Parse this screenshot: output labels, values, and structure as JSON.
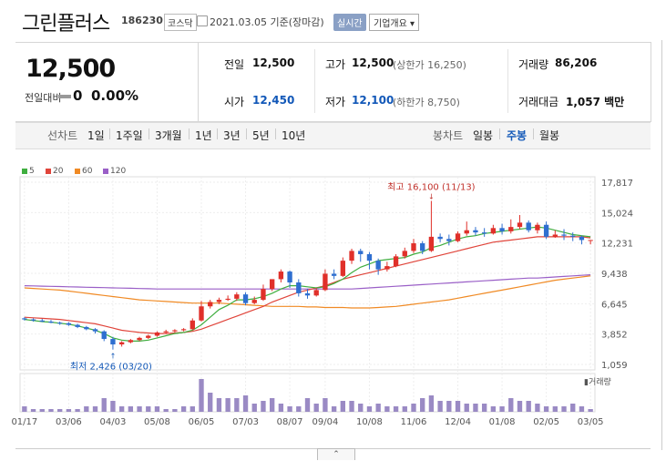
{
  "header": {
    "title": "그린플러스",
    "code": "186230",
    "market": "코스닥",
    "date": "2021.03.05  기준(장마감)",
    "realtime_label": "실시간",
    "corp_overview_label": "기업개요 ▾"
  },
  "price": {
    "current": "12,500",
    "change_label": "전일대비",
    "change_value": "0",
    "change_pct": "0.00%"
  },
  "stats": {
    "prev_close_label": "전일",
    "prev_close": "12,500",
    "high_label": "고가",
    "high": "12,500",
    "upper_limit": "(상한가 16,250)",
    "volume_label": "거래량",
    "volume": "86,206",
    "open_label": "시가",
    "open": "12,450",
    "low_label": "저가",
    "low": "12,100",
    "lower_limit": "(하한가 8,750)",
    "value_label": "거래대금",
    "value": "1,057 백만"
  },
  "tabs": {
    "line_chart": "선차트",
    "periods": [
      "1일",
      "1주일",
      "3개월",
      "1년",
      "3년",
      "5년",
      "10년"
    ],
    "candle_chart": "봉차트",
    "candle_periods": [
      "일봉",
      "주봉",
      "월봉"
    ]
  },
  "chart_data": {
    "type": "candlestick",
    "legend": [
      "5",
      "20",
      "60",
      "120"
    ],
    "colors": {
      "ma5": "#3fae3f",
      "ma20": "#e0443a",
      "ma60": "#f08a24",
      "ma120": "#9a5fc7",
      "up": "#e0302a",
      "down": "#2f6fd0",
      "volume": "#9a8ac4"
    },
    "y_ticks": [
      "17,817",
      "15,024",
      "12,231",
      "9,438",
      "6,645",
      "3,852",
      "1,059"
    ],
    "ylim": [
      1059,
      17817
    ],
    "x_ticks": [
      "01/17",
      "03/06",
      "04/03",
      "05/08",
      "06/05",
      "07/03",
      "08/07",
      "09/04",
      "10/08",
      "11/06",
      "12/04",
      "01/08",
      "02/05",
      "03/05"
    ],
    "annotations": {
      "high": "최고 16,100 (11/13)",
      "low": "최저 2,426 (03/20)"
    },
    "volume_label": "거래량",
    "candles": [
      [
        5300,
        5200,
        5400,
        5100
      ],
      [
        5200,
        5100,
        5300,
        5000
      ],
      [
        5100,
        5000,
        5250,
        4950
      ],
      [
        5000,
        4900,
        5150,
        4850
      ],
      [
        4900,
        4850,
        5000,
        4700
      ],
      [
        4850,
        4700,
        4950,
        4600
      ],
      [
        4700,
        4500,
        4800,
        4400
      ],
      [
        4500,
        4300,
        4600,
        4200
      ],
      [
        4300,
        4100,
        4400,
        3900
      ],
      [
        4100,
        3400,
        4200,
        3200
      ],
      [
        3400,
        2900,
        3600,
        2426
      ],
      [
        2900,
        3100,
        3200,
        2700
      ],
      [
        3100,
        3300,
        3400,
        3000
      ],
      [
        3300,
        3500,
        3600,
        3200
      ],
      [
        3500,
        3700,
        3800,
        3400
      ],
      [
        3700,
        4000,
        4100,
        3600
      ],
      [
        4000,
        4100,
        4250,
        3900
      ],
      [
        4100,
        4200,
        4300,
        4000
      ],
      [
        4200,
        4300,
        4400,
        4100
      ],
      [
        4300,
        5100,
        5300,
        4200
      ],
      [
        5100,
        6400,
        6900,
        5000
      ],
      [
        6400,
        6800,
        7000,
        6200
      ],
      [
        6800,
        7000,
        7200,
        6600
      ],
      [
        7000,
        7100,
        7400,
        6900
      ],
      [
        7100,
        7500,
        7700,
        6900
      ],
      [
        7500,
        6700,
        7700,
        6500
      ],
      [
        6700,
        7000,
        7300,
        6600
      ],
      [
        7000,
        8000,
        8400,
        6900
      ],
      [
        8000,
        8900,
        8900,
        7800
      ],
      [
        8900,
        9600,
        9800,
        8600
      ],
      [
        9600,
        8600,
        9700,
        8100
      ],
      [
        8600,
        7600,
        8900,
        7300
      ],
      [
        7600,
        7400,
        8000,
        7100
      ],
      [
        7400,
        7900,
        8100,
        7300
      ],
      [
        7900,
        9400,
        9800,
        7800
      ],
      [
        9400,
        9200,
        9800,
        8900
      ],
      [
        9200,
        10600,
        10900,
        9100
      ],
      [
        10600,
        11500,
        11700,
        10300
      ],
      [
        11500,
        11200,
        11700,
        10500
      ],
      [
        11200,
        10600,
        11400,
        9800
      ],
      [
        10600,
        9800,
        10800,
        9300
      ],
      [
        9800,
        10100,
        10500,
        9600
      ],
      [
        10100,
        11000,
        11200,
        10000
      ],
      [
        11000,
        11500,
        11800,
        10800
      ],
      [
        11500,
        12200,
        12600,
        11300
      ],
      [
        12200,
        11500,
        12400,
        11200
      ],
      [
        11500,
        12800,
        16100,
        11400
      ],
      [
        12800,
        12600,
        13100,
        12300
      ],
      [
        12600,
        12400,
        13000,
        12000
      ],
      [
        12400,
        13100,
        13300,
        12300
      ],
      [
        13100,
        13400,
        14200,
        12900
      ],
      [
        13400,
        13200,
        13700,
        12900
      ],
      [
        13200,
        13100,
        13600,
        12800
      ],
      [
        13100,
        13600,
        13900,
        13000
      ],
      [
        13600,
        13300,
        14000,
        13000
      ],
      [
        13300,
        13700,
        14400,
        13100
      ],
      [
        13700,
        14100,
        14800,
        13500
      ],
      [
        14100,
        13400,
        14300,
        13200
      ],
      [
        13400,
        13900,
        14100,
        13100
      ],
      [
        13900,
        12800,
        14200,
        12600
      ],
      [
        12800,
        13000,
        13400,
        12700
      ],
      [
        13000,
        12900,
        13500,
        12500
      ],
      [
        12900,
        12800,
        13200,
        12400
      ],
      [
        12800,
        12500,
        12900,
        12100
      ],
      [
        12450,
        12500,
        12500,
        12100
      ]
    ],
    "ma5": [
      5200,
      5100,
      5000,
      4950,
      4850,
      4750,
      4600,
      4400,
      4200,
      3900,
      3500,
      3300,
      3200,
      3200,
      3300,
      3500,
      3700,
      3900,
      4000,
      4200,
      4700,
      5400,
      6100,
      6500,
      7000,
      7000,
      7100,
      7300,
      7600,
      8000,
      8300,
      8300,
      8200,
      8100,
      8200,
      8500,
      8900,
      9500,
      10000,
      10300,
      10600,
      10700,
      10800,
      10900,
      11200,
      11400,
      11800,
      12000,
      12300,
      12600,
      12800,
      12900,
      13100,
      13200,
      13300,
      13400,
      13500,
      13600,
      13700,
      13600,
      13400,
      13200,
      13000,
      12900,
      12800
    ],
    "ma20": [
      5400,
      5350,
      5300,
      5250,
      5200,
      5100,
      5000,
      4900,
      4800,
      4600,
      4400,
      4200,
      4100,
      4000,
      3950,
      3900,
      3900,
      3950,
      4000,
      4100,
      4300,
      4600,
      4900,
      5200,
      5500,
      5800,
      6100,
      6400,
      6800,
      7100,
      7400,
      7700,
      7900,
      8100,
      8300,
      8600,
      8900,
      9100,
      9300,
      9500,
      9700,
      9900,
      10100,
      10300,
      10500,
      10700,
      10900,
      11100,
      11300,
      11500,
      11700,
      11900,
      12100,
      12300,
      12400,
      12500,
      12600,
      12700,
      12800,
      12800,
      12800,
      12800,
      12800,
      12800,
      12700
    ],
    "ma60": [
      8100,
      8050,
      8000,
      7950,
      7900,
      7800,
      7700,
      7600,
      7500,
      7400,
      7300,
      7200,
      7100,
      7000,
      6950,
      6900,
      6850,
      6800,
      6750,
      6700,
      6700,
      6700,
      6700,
      6650,
      6600,
      6550,
      6500,
      6450,
      6400,
      6400,
      6400,
      6400,
      6350,
      6350,
      6300,
      6300,
      6300,
      6250,
      6250,
      6250,
      6300,
      6350,
      6400,
      6500,
      6600,
      6700,
      6800,
      6900,
      7000,
      7150,
      7300,
      7450,
      7600,
      7750,
      7900,
      8050,
      8200,
      8350,
      8500,
      8650,
      8800,
      8900,
      9000,
      9100,
      9200
    ],
    "ma120": [
      8300,
      8280,
      8260,
      8240,
      8220,
      8200,
      8180,
      8160,
      8140,
      8120,
      8100,
      8080,
      8060,
      8040,
      8020,
      8000,
      8000,
      8000,
      8000,
      8000,
      8000,
      8000,
      8000,
      8000,
      8000,
      8000,
      8000,
      8000,
      8000,
      8000,
      8000,
      8000,
      8000,
      8000,
      8000,
      8000,
      8000,
      8000,
      8050,
      8100,
      8150,
      8200,
      8250,
      8300,
      8350,
      8400,
      8450,
      8500,
      8550,
      8600,
      8650,
      8700,
      8750,
      8800,
      8850,
      8900,
      8950,
      9000,
      9000,
      9050,
      9100,
      9150,
      9200,
      9250,
      9300
    ],
    "volumes": [
      2,
      1,
      1,
      1,
      1,
      1,
      1,
      2,
      2,
      5,
      4,
      2,
      2,
      2,
      2,
      2,
      1,
      1,
      2,
      2,
      12,
      7,
      5,
      5,
      5,
      6,
      3,
      4,
      5,
      3,
      2,
      2,
      5,
      3,
      5,
      2,
      4,
      4,
      3,
      2,
      3,
      2,
      2,
      2,
      3,
      5,
      6,
      4,
      4,
      4,
      3,
      3,
      3,
      2,
      2,
      5,
      4,
      4,
      3,
      2,
      2,
      2,
      3,
      2,
      1
    ]
  }
}
